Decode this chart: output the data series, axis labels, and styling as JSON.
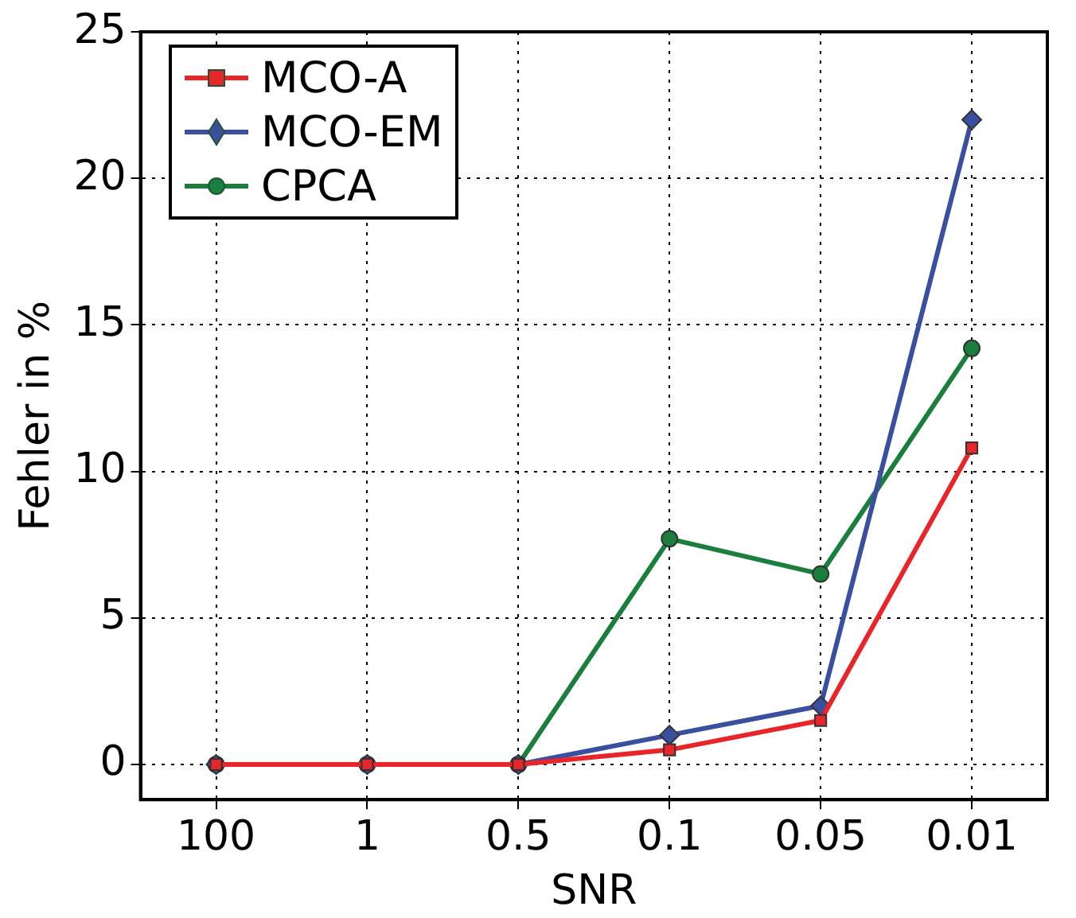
{
  "chart_data": {
    "type": "line",
    "xlabel": "SNR",
    "ylabel": "Fehler in %",
    "categories": [
      "100",
      "1",
      "0.5",
      "0.1",
      "0.05",
      "0.01"
    ],
    "series": [
      {
        "name": "MCO-A",
        "color": "#e8262a",
        "marker": "square",
        "values": [
          0,
          0,
          0,
          0.5,
          1.5,
          10.8
        ]
      },
      {
        "name": "MCO-EM",
        "color": "#3b4fa0",
        "marker": "diamond",
        "values": [
          0,
          0,
          0,
          1.0,
          2.0,
          22.0
        ]
      },
      {
        "name": "CPCA",
        "color": "#1a7f3c",
        "marker": "circle",
        "values": [
          0,
          0,
          0,
          7.7,
          6.5,
          14.2
        ]
      }
    ],
    "ylim": [
      -1.2,
      25
    ],
    "yticks": [
      0,
      5,
      10,
      15,
      20,
      25
    ],
    "grid": true,
    "legend": "top left",
    "line_style": "solid"
  }
}
